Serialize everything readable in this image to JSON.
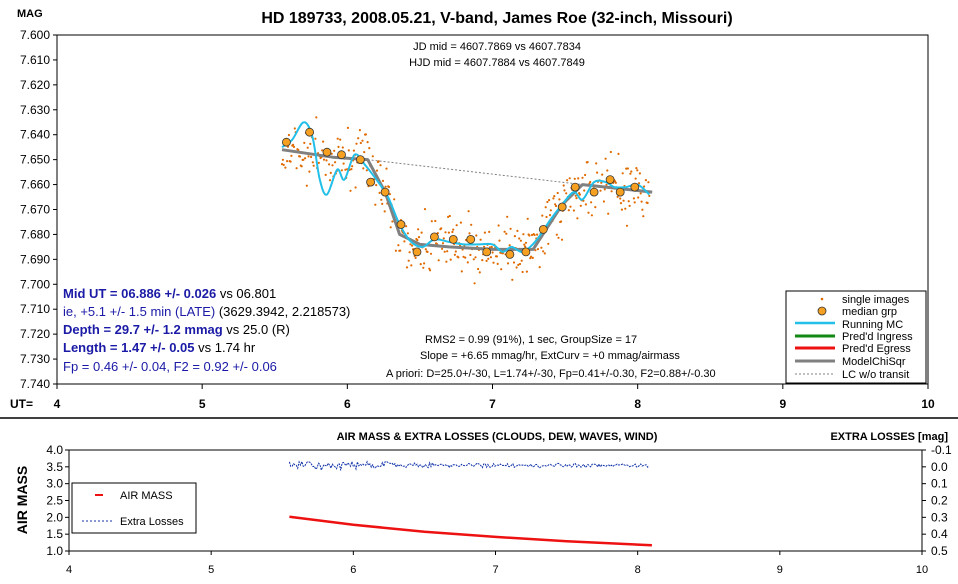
{
  "colors": {
    "single": "#e06a00",
    "median_fill": "#f5a020",
    "running": "#22bfe8",
    "ingress": "#118811",
    "egress": "#ee1111",
    "model": "#808080",
    "lc": "#808080",
    "airmass": "#ee1111",
    "losses": "#1133aa",
    "stat_blue": "#1a1aa6"
  },
  "chart_data": [
    {
      "type": "scatter",
      "title": "HD 189733, 2008.05.21, V-band, James Roe (32-inch, Missouri)",
      "ylabel": "MAG",
      "xlabel": "UT=",
      "xlim": [
        4,
        10
      ],
      "ylim": [
        7.74,
        7.6
      ],
      "y_inverted": true,
      "x_ticks": [
        "4",
        "5",
        "6",
        "7",
        "8",
        "9",
        "10"
      ],
      "y_ticks": [
        "7.600",
        "7.610",
        "7.620",
        "7.630",
        "7.640",
        "7.650",
        "7.660",
        "7.670",
        "7.680",
        "7.690",
        "7.700",
        "7.710",
        "7.720",
        "7.730",
        "7.740"
      ],
      "grid": false,
      "legend_position": "bottom-right",
      "legend": [
        "single images",
        "median grp",
        "Running MC",
        "Pred'd Ingress",
        "Pred'd Egress",
        "ModelChiSqr",
        "LC w/o transit"
      ],
      "series": [
        {
          "name": "median grp",
          "x": [
            5.58,
            5.74,
            5.86,
            5.96,
            6.09,
            6.16,
            6.26,
            6.37,
            6.48,
            6.6,
            6.73,
            6.85,
            6.96,
            7.12,
            7.23,
            7.35,
            7.48,
            7.57,
            7.7,
            7.81,
            7.88,
            7.98
          ],
          "y": [
            7.643,
            7.639,
            7.647,
            7.648,
            7.65,
            7.659,
            7.663,
            7.676,
            7.687,
            7.681,
            7.682,
            7.682,
            7.687,
            7.688,
            7.687,
            7.678,
            7.669,
            7.661,
            7.663,
            7.658,
            7.663,
            7.661
          ]
        },
        {
          "name": "Running MC",
          "x": [
            5.55,
            5.62,
            5.7,
            5.76,
            5.81,
            5.86,
            5.93,
            5.98,
            6.05,
            6.12,
            6.2,
            6.28,
            6.36,
            6.44,
            6.52,
            6.6,
            6.7,
            6.8,
            6.9,
            7.0,
            7.07,
            7.13,
            7.2,
            7.26,
            7.32,
            7.4,
            7.48,
            7.56,
            7.62,
            7.7,
            7.78,
            7.84,
            7.92,
            8.0,
            8.08
          ],
          "y": [
            7.645,
            7.642,
            7.635,
            7.641,
            7.658,
            7.664,
            7.654,
            7.658,
            7.648,
            7.652,
            7.658,
            7.665,
            7.676,
            7.683,
            7.685,
            7.682,
            7.683,
            7.684,
            7.684,
            7.684,
            7.687,
            7.685,
            7.687,
            7.685,
            7.681,
            7.674,
            7.668,
            7.663,
            7.666,
            7.659,
            7.659,
            7.661,
            7.661,
            7.66,
            7.664
          ]
        },
        {
          "name": "ModelChiSqr",
          "x": [
            5.55,
            5.9,
            6.14,
            6.26,
            6.36,
            6.5,
            6.7,
            7.0,
            7.28,
            7.38,
            7.48,
            7.62,
            8.1
          ],
          "y": [
            7.646,
            7.649,
            7.65,
            7.663,
            7.68,
            7.684,
            7.685,
            7.686,
            7.686,
            7.677,
            7.668,
            7.66,
            7.663
          ]
        },
        {
          "name": "LC w/o transit",
          "x": [
            6.14,
            7.62
          ],
          "y": [
            7.65,
            7.66
          ]
        },
        {
          "name": "single images",
          "x_range": [
            5.55,
            8.08
          ],
          "count": 430,
          "scatter_sd": 0.008
        }
      ],
      "annotations": {
        "jd": "JD mid = 4607.7869 vs 4607.7834",
        "hjd": "HJD mid = 4607.7884 vs 4607.7849",
        "rms": "RMS2 = 0.99 (91%), 1 sec, GroupSize = 17",
        "slope": "Slope = +6.65 mmag/hr, ExtCurv = +0 mmag/airmass",
        "apriori": "A priori: D=25.0+/-30, L=1.74+/-30, Fp=0.41+/-0.30, F2=0.88+/-0.30",
        "mid_ut_bold": "Mid UT = 06.886 +/- 0.026",
        "mid_ut_vs": " vs 06.801",
        "ie_blue": "ie, +5.1 +/- 1.5 min (LATE)",
        "ie_black": " (3629.3942, 2.218573)",
        "depth_bold": "Depth = 29.7 +/- 1.2 mmag",
        "depth_vs": " vs 25.0 (R)",
        "length_bold": "Length = 1.47 +/- 0.05",
        "length_vs": "  vs 1.74 hr",
        "fp": "Fp = 0.46 +/- 0.04, F2 = 0.92 +/- 0.06"
      }
    },
    {
      "type": "line",
      "title": "AIR MASS & EXTRA LOSSES (CLOUDS, DEW, WAVES, WIND)",
      "ylabel": "AIR MASS",
      "y2label": "EXTRA LOSSES [mag]",
      "xlim": [
        4,
        10
      ],
      "ylim": [
        1.0,
        4.0
      ],
      "y2lim": [
        -0.1,
        0.5
      ],
      "y2_inverted": true,
      "x_ticks": [
        "4",
        "5",
        "6",
        "7",
        "8",
        "9",
        "10"
      ],
      "y_ticks": [
        "1.0",
        "1.5",
        "2.0",
        "2.5",
        "3.0",
        "3.5",
        "4.0"
      ],
      "y2_ticks": [
        "-0.1",
        "0.0",
        "0.1",
        "0.2",
        "0.3",
        "0.4",
        "0.5"
      ],
      "legend_position": "left",
      "legend": [
        "AIR MASS",
        "Extra Losses"
      ],
      "series": [
        {
          "name": "AIR MASS",
          "x": [
            5.55,
            6.0,
            6.5,
            7.0,
            7.5,
            8.0,
            8.1
          ],
          "y": [
            2.02,
            1.78,
            1.57,
            1.42,
            1.29,
            1.19,
            1.17
          ]
        },
        {
          "name": "Extra Losses",
          "x_range": [
            5.55,
            8.08
          ],
          "level_mag": -0.01,
          "noise_mag": 0.012
        }
      ]
    }
  ]
}
